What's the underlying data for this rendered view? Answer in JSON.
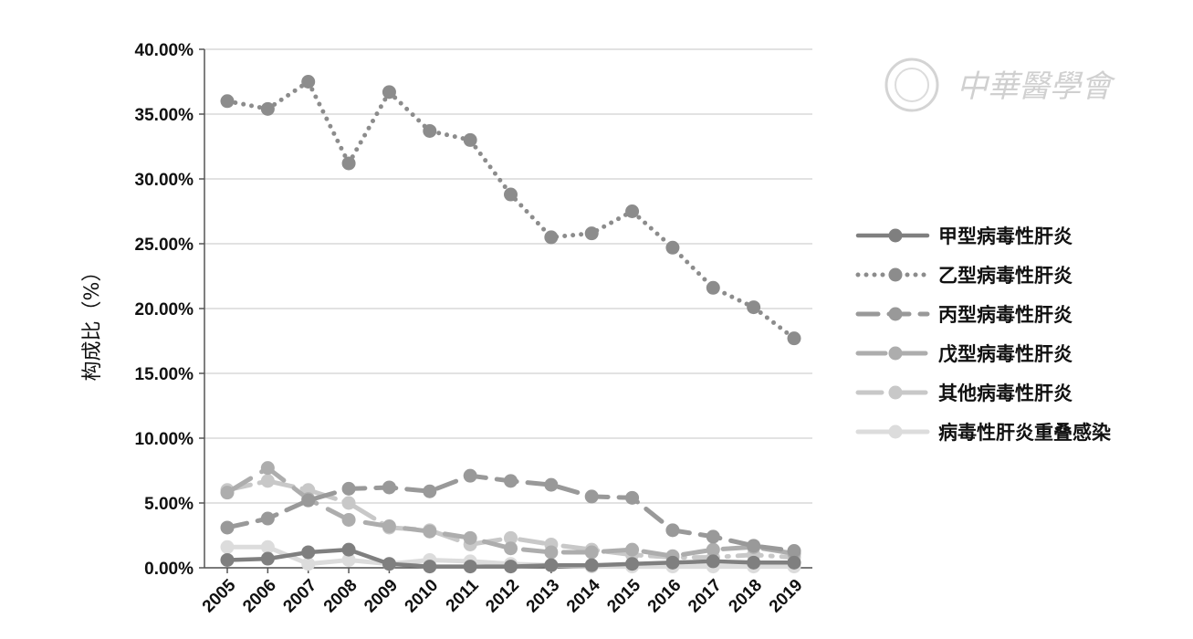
{
  "watermark": {
    "text": "中華醫學會"
  },
  "chart_data": {
    "type": "line",
    "title": "",
    "xlabel": "",
    "ylabel": "构成比（%）",
    "x": [
      "2005",
      "2006",
      "2007",
      "2008",
      "2009",
      "2010",
      "2011",
      "2012",
      "2013",
      "2014",
      "2015",
      "2016",
      "2017",
      "2018",
      "2019"
    ],
    "ylim": [
      0,
      40
    ],
    "yticks": [
      "0.00%",
      "5.00%",
      "10.00%",
      "15.00%",
      "20.00%",
      "25.00%",
      "30.00%",
      "35.00%",
      "40.00%"
    ],
    "grid": true,
    "legend_position": "right",
    "series": [
      {
        "name": "甲型病毒性肝炎",
        "style": "solid",
        "color": "#7f7f7f",
        "values": [
          0.6,
          0.7,
          1.2,
          1.4,
          0.3,
          0.1,
          0.1,
          0.1,
          0.2,
          0.2,
          0.3,
          0.4,
          0.5,
          0.4,
          0.4
        ]
      },
      {
        "name": "乙型病毒性肝炎",
        "style": "dotted",
        "color": "#8c8c8c",
        "values": [
          36.0,
          35.4,
          37.5,
          31.2,
          36.7,
          33.7,
          33.0,
          28.8,
          25.5,
          25.8,
          27.5,
          24.7,
          21.6,
          20.1,
          17.7
        ]
      },
      {
        "name": "丙型病毒性肝炎",
        "style": "dash",
        "color": "#999999",
        "values": [
          3.1,
          3.8,
          5.2,
          6.1,
          6.2,
          5.9,
          7.1,
          6.7,
          6.4,
          5.5,
          5.4,
          2.9,
          2.4,
          1.7,
          1.3
        ]
      },
      {
        "name": "戊型病毒性肝炎",
        "style": "longdash",
        "color": "#adadad",
        "values": [
          5.8,
          7.7,
          5.3,
          3.7,
          3.2,
          2.8,
          2.3,
          1.5,
          1.2,
          1.2,
          1.4,
          0.9,
          1.4,
          1.6,
          1.1
        ]
      },
      {
        "name": "其他病毒性肝炎",
        "style": "dashdot",
        "color": "#c8c8c8",
        "values": [
          6.0,
          6.7,
          6.0,
          5.0,
          3.1,
          2.9,
          1.8,
          2.3,
          1.8,
          1.4,
          1.0,
          0.8,
          0.8,
          1.0,
          0.8
        ]
      },
      {
        "name": "病毒性肝炎重叠感染",
        "style": "solid-light",
        "color": "#dcdcdc",
        "values": [
          1.6,
          1.6,
          0.3,
          0.6,
          0.3,
          0.6,
          0.5,
          0.3,
          0.2,
          0.1,
          0.1,
          0.1,
          0.1,
          0.1,
          0.1
        ]
      }
    ]
  }
}
